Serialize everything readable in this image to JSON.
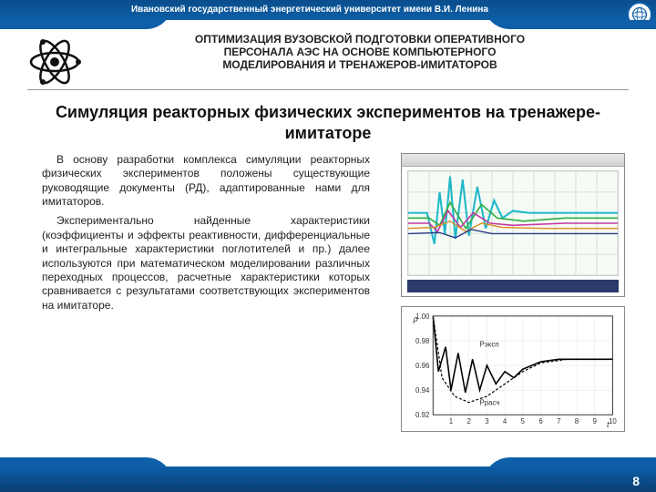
{
  "banner": {
    "university": "Ивановский государственный энергетический университет имени В.И. Ленина"
  },
  "header": {
    "line1": "ОПТИМИЗАЦИЯ ВУЗОВСКОЙ ПОДГОТОВКИ ОПЕРАТИВНОГО",
    "line2": "ПЕРСОНАЛА АЭС НА ОСНОВЕ КОМПЬЮТЕРНОГО",
    "line3": "МОДЕЛИРОВАНИЯ И ТРЕНАЖЕРОВ-ИМИТАТОРОВ"
  },
  "title": "Симуляция реакторных физических экспериментов на тренажере-имитаторе",
  "body": {
    "p1": "В основу разработки комплекса симуляции реакторных физических экспериментов положены существующие руководящие документы (РД), адаптированные нами для имитаторов.",
    "p2": "Экспериментально найденные характеристики (коэффициенты и эффекты реактивности, дифференциальные и интегральные характеристики поглотителей и пр.) далее используются при математическом моделировании различных переходных процессов, расчетные характеристики которых сравнивается с результатами соответствующих экспериментов на имитаторе."
  },
  "page_number": "8",
  "chart1": {
    "type": "multiline-oscilloscope",
    "background_color": "#f6fbf6",
    "grid_color": "#d6e6d6",
    "strip_color": "#2a3a6a",
    "series": [
      {
        "name": "cyan",
        "color": "#1fb8c9",
        "width": 1.8,
        "points": [
          [
            0,
            60
          ],
          [
            10,
            60
          ],
          [
            18,
            60
          ],
          [
            25,
            30
          ],
          [
            30,
            80
          ],
          [
            35,
            40
          ],
          [
            40,
            95
          ],
          [
            45,
            35
          ],
          [
            52,
            92
          ],
          [
            58,
            38
          ],
          [
            66,
            85
          ],
          [
            74,
            45
          ],
          [
            82,
            72
          ],
          [
            90,
            55
          ],
          [
            100,
            62
          ],
          [
            115,
            60
          ],
          [
            140,
            60
          ],
          [
            170,
            60
          ],
          [
            200,
            60
          ]
        ]
      },
      {
        "name": "green",
        "color": "#2fae3f",
        "width": 1.4,
        "points": [
          [
            0,
            55
          ],
          [
            20,
            55
          ],
          [
            30,
            48
          ],
          [
            40,
            70
          ],
          [
            55,
            45
          ],
          [
            70,
            68
          ],
          [
            85,
            55
          ],
          [
            110,
            52
          ],
          [
            150,
            55
          ],
          [
            200,
            55
          ]
        ]
      },
      {
        "name": "magenta",
        "color": "#c33aa2",
        "width": 1.4,
        "points": [
          [
            0,
            50
          ],
          [
            20,
            50
          ],
          [
            28,
            42
          ],
          [
            38,
            62
          ],
          [
            50,
            46
          ],
          [
            62,
            60
          ],
          [
            78,
            50
          ],
          [
            100,
            48
          ],
          [
            150,
            50
          ],
          [
            200,
            50
          ]
        ]
      },
      {
        "name": "orange",
        "color": "#e08a1f",
        "width": 1.2,
        "points": [
          [
            0,
            45
          ],
          [
            25,
            46
          ],
          [
            40,
            52
          ],
          [
            55,
            42
          ],
          [
            70,
            50
          ],
          [
            90,
            46
          ],
          [
            130,
            45
          ],
          [
            200,
            45
          ]
        ]
      },
      {
        "name": "navy",
        "color": "#2b3a8a",
        "width": 1.2,
        "points": [
          [
            0,
            40
          ],
          [
            30,
            41
          ],
          [
            45,
            36
          ],
          [
            60,
            44
          ],
          [
            80,
            40
          ],
          [
            120,
            40
          ],
          [
            200,
            40
          ]
        ]
      }
    ]
  },
  "chart2": {
    "type": "line",
    "ylabel": "ρ",
    "xlabel": "t",
    "xlim": [
      0,
      10
    ],
    "ylim": [
      0.92,
      1.0
    ],
    "xticks": [
      1,
      2,
      3,
      4,
      5,
      6,
      7,
      8,
      9,
      10
    ],
    "yticks": [
      0.92,
      0.94,
      0.96,
      0.98,
      1.0
    ],
    "ytick_labels": [
      "0.92",
      "0.94",
      "0.96",
      "0.98",
      "1.00"
    ],
    "grid_color": "#e8e8e8",
    "background_color": "#ffffff",
    "label_inside_1": "Pэксп",
    "label_inside_2": "Pрасч",
    "series": [
      {
        "name": "model",
        "color": "#000000",
        "width": 1.6,
        "dash": "",
        "points": [
          [
            0,
            1.0
          ],
          [
            0.3,
            0.955
          ],
          [
            0.7,
            0.975
          ],
          [
            1.0,
            0.94
          ],
          [
            1.4,
            0.97
          ],
          [
            1.8,
            0.938
          ],
          [
            2.2,
            0.965
          ],
          [
            2.6,
            0.94
          ],
          [
            3.0,
            0.96
          ],
          [
            3.5,
            0.945
          ],
          [
            4.0,
            0.955
          ],
          [
            4.5,
            0.95
          ],
          [
            5.0,
            0.957
          ],
          [
            6.0,
            0.963
          ],
          [
            7.0,
            0.965
          ],
          [
            8.0,
            0.965
          ],
          [
            9.0,
            0.965
          ],
          [
            10,
            0.965
          ]
        ]
      },
      {
        "name": "exp",
        "color": "#000000",
        "width": 1.2,
        "dash": "3,2",
        "points": [
          [
            0,
            1.0
          ],
          [
            0.5,
            0.95
          ],
          [
            1.2,
            0.935
          ],
          [
            2.0,
            0.93
          ],
          [
            3.0,
            0.935
          ],
          [
            4.0,
            0.945
          ],
          [
            5.0,
            0.955
          ],
          [
            6.0,
            0.962
          ],
          [
            7.5,
            0.965
          ],
          [
            10,
            0.965
          ]
        ]
      }
    ]
  },
  "colors": {
    "banner_top": "#0a4d8c",
    "banner_bottom": "#0d5fa8",
    "text": "#222222"
  }
}
